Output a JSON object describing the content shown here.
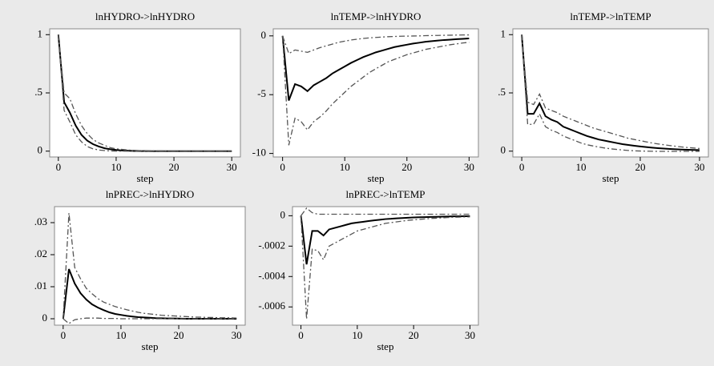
{
  "chart_data": [
    {
      "type": "line",
      "title": "lnHYDRO->lnHYDRO",
      "xlabel": "step",
      "x": [
        0,
        1,
        2,
        3,
        4,
        5,
        6,
        7,
        8,
        9,
        10,
        11,
        12,
        13,
        14,
        15,
        16,
        17,
        18,
        19,
        20,
        21,
        22,
        23,
        24,
        25,
        26,
        27,
        28,
        29,
        30
      ],
      "xlim": [
        -1.5,
        31.5
      ],
      "xticks": [
        0,
        10,
        20,
        30
      ],
      "ylim": [
        -0.05,
        1.05
      ],
      "yticks": [
        0,
        {
          "value": 0.5,
          "label": ".5"
        },
        1
      ],
      "series": [
        {
          "color": "#000000",
          "linestyle": "solid",
          "values": [
            1,
            0.42,
            0.33,
            0.22,
            0.14,
            0.09,
            0.06,
            0.04,
            0.025,
            0.016,
            0.01,
            0.006,
            0.004,
            0.002,
            0.001,
            0.001,
            0,
            0,
            0,
            0,
            0,
            0,
            0,
            0,
            0,
            0,
            0,
            0,
            0,
            0,
            0
          ]
        },
        {
          "color": "#555555",
          "linestyle": "dashdot",
          "values": [
            1,
            0.5,
            0.45,
            0.32,
            0.22,
            0.15,
            0.1,
            0.07,
            0.05,
            0.03,
            0.02,
            0.015,
            0.01,
            0.007,
            0.005,
            0.003,
            0.002,
            0.001,
            0.001,
            0,
            0,
            0,
            0,
            0,
            0,
            0,
            0,
            0,
            0,
            0,
            0
          ]
        },
        {
          "color": "#555555",
          "linestyle": "dashdot",
          "values": [
            1,
            0.35,
            0.25,
            0.14,
            0.08,
            0.04,
            0.02,
            0.01,
            0.005,
            0.002,
            0,
            0,
            0,
            0,
            0,
            0,
            0,
            0,
            0,
            0,
            0,
            0,
            0,
            0,
            0,
            0,
            0,
            0,
            0,
            0,
            0
          ]
        }
      ]
    },
    {
      "type": "line",
      "title": "lnTEMP->lnHYDRO",
      "xlabel": "step",
      "x": [
        0,
        1,
        2,
        3,
        4,
        5,
        6,
        7,
        8,
        9,
        10,
        11,
        12,
        13,
        14,
        15,
        16,
        17,
        18,
        19,
        20,
        21,
        22,
        23,
        24,
        25,
        26,
        27,
        28,
        29,
        30
      ],
      "xlim": [
        -1.5,
        31.5
      ],
      "xticks": [
        0,
        10,
        20,
        30
      ],
      "ylim": [
        -10.3,
        0.6
      ],
      "yticks": [
        -10,
        -5,
        0
      ],
      "series": [
        {
          "color": "#000000",
          "linestyle": "solid",
          "values": [
            0,
            -5.5,
            -4.1,
            -4.3,
            -4.7,
            -4.2,
            -3.9,
            -3.6,
            -3.2,
            -2.9,
            -2.6,
            -2.3,
            -2.05,
            -1.8,
            -1.6,
            -1.4,
            -1.25,
            -1.1,
            -0.95,
            -0.85,
            -0.75,
            -0.65,
            -0.58,
            -0.5,
            -0.45,
            -0.4,
            -0.35,
            -0.32,
            -0.28,
            -0.25,
            -0.22
          ]
        },
        {
          "color": "#555555",
          "linestyle": "dashdot",
          "values": [
            0,
            -1.5,
            -1.2,
            -1.3,
            -1.4,
            -1.2,
            -1.0,
            -0.85,
            -0.7,
            -0.55,
            -0.45,
            -0.35,
            -0.28,
            -0.22,
            -0.17,
            -0.13,
            -0.1,
            -0.07,
            -0.05,
            -0.03,
            -0.02,
            -0.01,
            0,
            0.02,
            0.03,
            0.04,
            0.05,
            0.06,
            0.07,
            0.08,
            0.08
          ]
        },
        {
          "color": "#555555",
          "linestyle": "dashdot",
          "values": [
            0,
            -9.3,
            -7.0,
            -7.3,
            -8.0,
            -7.3,
            -6.9,
            -6.4,
            -5.8,
            -5.3,
            -4.8,
            -4.3,
            -3.9,
            -3.5,
            -3.1,
            -2.8,
            -2.5,
            -2.2,
            -2.0,
            -1.8,
            -1.6,
            -1.45,
            -1.3,
            -1.15,
            -1.05,
            -0.95,
            -0.85,
            -0.75,
            -0.68,
            -0.6,
            -0.55
          ]
        }
      ]
    },
    {
      "type": "line",
      "title": "lnTEMP->lnTEMP",
      "xlabel": "step",
      "x": [
        0,
        1,
        2,
        3,
        4,
        5,
        6,
        7,
        8,
        9,
        10,
        11,
        12,
        13,
        14,
        15,
        16,
        17,
        18,
        19,
        20,
        21,
        22,
        23,
        24,
        25,
        26,
        27,
        28,
        29,
        30
      ],
      "xlim": [
        -1.5,
        31.5
      ],
      "xticks": [
        0,
        10,
        20,
        30
      ],
      "ylim": [
        -0.05,
        1.05
      ],
      "yticks": [
        0,
        {
          "value": 0.5,
          "label": ".5"
        },
        1
      ],
      "series": [
        {
          "color": "#000000",
          "linestyle": "solid",
          "values": [
            1,
            0.32,
            0.32,
            0.41,
            0.3,
            0.27,
            0.25,
            0.21,
            0.19,
            0.17,
            0.15,
            0.13,
            0.115,
            0.1,
            0.09,
            0.08,
            0.07,
            0.06,
            0.053,
            0.046,
            0.04,
            0.035,
            0.03,
            0.026,
            0.022,
            0.019,
            0.016,
            0.014,
            0.012,
            0.01,
            0.009
          ]
        },
        {
          "color": "#555555",
          "linestyle": "dashdot",
          "values": [
            1,
            0.42,
            0.4,
            0.49,
            0.37,
            0.35,
            0.33,
            0.3,
            0.28,
            0.26,
            0.24,
            0.22,
            0.2,
            0.185,
            0.17,
            0.155,
            0.14,
            0.125,
            0.11,
            0.1,
            0.09,
            0.08,
            0.07,
            0.062,
            0.055,
            0.048,
            0.042,
            0.036,
            0.031,
            0.027,
            0.023
          ]
        },
        {
          "color": "#555555",
          "linestyle": "dashdot",
          "values": [
            1,
            0.23,
            0.23,
            0.32,
            0.21,
            0.18,
            0.16,
            0.13,
            0.11,
            0.09,
            0.07,
            0.055,
            0.045,
            0.035,
            0.027,
            0.02,
            0.015,
            0.01,
            0.006,
            0.003,
            0.001,
            0,
            -0.001,
            -0.002,
            -0.002,
            -0.002,
            -0.002,
            -0.002,
            -0.002,
            -0.002,
            -0.002
          ]
        }
      ]
    },
    {
      "type": "line",
      "title": "lnPREC->lnHYDRO",
      "xlabel": "step",
      "x": [
        0,
        1,
        2,
        3,
        4,
        5,
        6,
        7,
        8,
        9,
        10,
        11,
        12,
        13,
        14,
        15,
        16,
        17,
        18,
        19,
        20,
        21,
        22,
        23,
        24,
        25,
        26,
        27,
        28,
        29,
        30
      ],
      "xlim": [
        -1.5,
        31.5
      ],
      "xticks": [
        0,
        10,
        20,
        30
      ],
      "ylim": [
        -0.002,
        0.035
      ],
      "yticks": [
        0,
        {
          "value": 0.01,
          "label": ".01"
        },
        {
          "value": 0.02,
          "label": ".02"
        },
        {
          "value": 0.03,
          "label": ".03"
        }
      ],
      "series": [
        {
          "color": "#000000",
          "linestyle": "solid",
          "values": [
            0,
            0.0155,
            0.011,
            0.008,
            0.006,
            0.0045,
            0.0035,
            0.0027,
            0.002,
            0.0015,
            0.0012,
            0.0009,
            0.0007,
            0.0005,
            0.0004,
            0.0003,
            0.0002,
            0.00015,
            0.0001,
            0.0001,
            5e-05,
            0,
            0,
            0,
            0,
            0,
            0,
            0,
            0,
            0,
            0
          ]
        },
        {
          "color": "#555555",
          "linestyle": "dashdot",
          "values": [
            0,
            0.033,
            0.016,
            0.0125,
            0.0095,
            0.0078,
            0.0063,
            0.0052,
            0.0045,
            0.0038,
            0.0033,
            0.0028,
            0.0024,
            0.002,
            0.0017,
            0.0015,
            0.0013,
            0.0011,
            0.001,
            0.0009,
            0.0008,
            0.0007,
            0.0006,
            0.0005,
            0.0005,
            0.0004,
            0.0004,
            0.0003,
            0.0003,
            0.0003,
            0.0002
          ]
        },
        {
          "color": "#555555",
          "linestyle": "dashdot",
          "values": [
            0,
            -0.0015,
            -0.0003,
            0,
            0.0002,
            0.0002,
            0.0002,
            0.0001,
            0.0001,
            0.0001,
            0,
            0,
            0,
            0,
            0,
            0,
            0,
            0,
            0,
            0,
            0,
            0,
            0,
            0,
            0,
            0,
            0,
            0,
            0,
            0,
            0
          ]
        }
      ]
    },
    {
      "type": "line",
      "title": "lnPREC->lnTEMP",
      "xlabel": "step",
      "x": [
        0,
        1,
        2,
        3,
        4,
        5,
        6,
        7,
        8,
        9,
        10,
        11,
        12,
        13,
        14,
        15,
        16,
        17,
        18,
        19,
        20,
        21,
        22,
        23,
        24,
        25,
        26,
        27,
        28,
        29,
        30
      ],
      "xlim": [
        -1.5,
        31.5
      ],
      "xticks": [
        0,
        10,
        20,
        30
      ],
      "ylim": [
        -0.00072,
        6e-05
      ],
      "yticks": [
        {
          "value": -0.0006,
          "label": "-.0006"
        },
        {
          "value": -0.0004,
          "label": "-.0004"
        },
        {
          "value": -0.0002,
          "label": "-.0002"
        },
        0
      ],
      "series": [
        {
          "color": "#000000",
          "linestyle": "solid",
          "values": [
            0,
            -0.00032,
            -0.0001,
            -0.0001,
            -0.00013,
            -9e-05,
            -8e-05,
            -7e-05,
            -6e-05,
            -5e-05,
            -4.5e-05,
            -4e-05,
            -3.5e-05,
            -3e-05,
            -2.6e-05,
            -2.2e-05,
            -2e-05,
            -1.7e-05,
            -1.5e-05,
            -1.3e-05,
            -1.1e-05,
            -1e-05,
            -9e-06,
            -8e-06,
            -7e-06,
            -6e-06,
            -5e-06,
            -4e-06,
            -4e-06,
            -3e-06,
            -3e-06
          ]
        },
        {
          "color": "#555555",
          "linestyle": "dashdot",
          "values": [
            0,
            5e-05,
            2e-05,
            1e-05,
            1e-05,
            1e-05,
            1e-05,
            1e-05,
            1e-05,
            1e-05,
            1e-05,
            1e-05,
            1e-05,
            1e-05,
            1e-05,
            1e-05,
            1e-05,
            1e-05,
            1e-05,
            1e-05,
            1e-05,
            1e-05,
            1e-05,
            1e-05,
            1e-05,
            1e-05,
            1e-05,
            1e-05,
            1e-05,
            1e-05,
            1e-05
          ]
        },
        {
          "color": "#555555",
          "linestyle": "dashdot",
          "values": [
            0,
            -0.00068,
            -0.00022,
            -0.00023,
            -0.00029,
            -0.0002,
            -0.00018,
            -0.00016,
            -0.00014,
            -0.00012,
            -0.0001,
            -9e-05,
            -8e-05,
            -7e-05,
            -6e-05,
            -5e-05,
            -4.5e-05,
            -4e-05,
            -3.5e-05,
            -3e-05,
            -2.7e-05,
            -2.4e-05,
            -2.1e-05,
            -1.8e-05,
            -1.6e-05,
            -1.4e-05,
            -1.2e-05,
            -1e-05,
            -9e-06,
            -8e-06,
            -7e-06
          ]
        }
      ]
    }
  ]
}
